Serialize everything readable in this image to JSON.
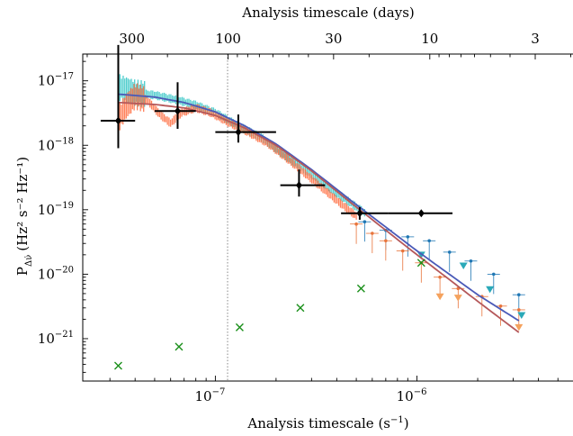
{
  "chart_data": {
    "type": "scatter",
    "scale": {
      "x": "log",
      "y": "log",
      "x_top": "log (timescale in days)"
    },
    "xlabel": "Analysis timescale (s",
    "xlabel_sup": "−1",
    "xlabel_close": ")",
    "ylabel": "P",
    "ylabel_sub": "Δν̇",
    "ylabel_units": "(Hz² s⁻² Hz⁻¹)",
    "top_xlabel": "Analysis timescale (days)",
    "xlim": [
      2.2e-08,
      6e-06
    ],
    "ylim": [
      2.2e-22,
      2.6e-17
    ],
    "x_ticks": [
      {
        "value": 1e-07,
        "label": "10",
        "exp": "−7"
      },
      {
        "value": 1e-06,
        "label": "10",
        "exp": "−6"
      }
    ],
    "y_ticks": [
      {
        "value": 1e-17,
        "label": "10",
        "exp": "−17"
      },
      {
        "value": 1e-18,
        "label": "10",
        "exp": "−18"
      },
      {
        "value": 1e-19,
        "label": "10",
        "exp": "−19"
      },
      {
        "value": 1e-20,
        "label": "10",
        "exp": "−20"
      },
      {
        "value": 1e-21,
        "label": "10",
        "exp": "−21"
      }
    ],
    "top_ticks": [
      {
        "days": 300,
        "label": "300"
      },
      {
        "days": 100,
        "label": "100"
      },
      {
        "days": 30,
        "label": "30"
      },
      {
        "days": 10,
        "label": "10"
      },
      {
        "days": 3,
        "label": "3"
      }
    ],
    "vline_x": 1.15e-07,
    "series": [
      {
        "kind": "spectrum_band",
        "color": "#2ec4c4",
        "x": [
          3.3e-08,
          4e-08,
          5e-08,
          6.5e-08,
          8e-08,
          1e-07,
          1.3e-07,
          1.7e-07,
          2.2e-07,
          3e-07,
          4e-07,
          5.5e-07
        ],
        "y": [
          8e-18,
          6.5e-18,
          6e-18,
          5e-18,
          4.2e-18,
          3.2e-18,
          2e-18,
          1.3e-18,
          7e-19,
          3.5e-19,
          1.8e-19,
          9e-20
        ]
      },
      {
        "kind": "spectrum_band",
        "color": "#ff6a3d",
        "x": [
          3.3e-08,
          3.6e-08,
          4e-08,
          4.6e-08,
          5.3e-08,
          6e-08,
          6.8e-08,
          8e-08,
          9.5e-08,
          1.15e-07,
          1.4e-07,
          1.8e-07,
          2.3e-07,
          3e-07,
          4e-07,
          5e-07
        ],
        "y": [
          2.5e-18,
          4e-18,
          5.8e-18,
          5e-18,
          3e-18,
          2.2e-18,
          3.2e-18,
          3.8e-18,
          3.2e-18,
          2.3e-18,
          1.7e-18,
          1.1e-18,
          6e-19,
          3e-19,
          1.4e-19,
          8e-20
        ]
      },
      {
        "kind": "points",
        "color": "#1f77b4",
        "x": [
          5.5e-07,
          7e-07,
          9e-07,
          1.15e-06,
          1.45e-06,
          1.85e-06,
          2.4e-06,
          3.2e-06
        ],
        "y": [
          6.5e-20,
          4.8e-20,
          3.8e-20,
          3.3e-20,
          2.2e-20,
          1.6e-20,
          1e-20,
          4.8e-21
        ]
      },
      {
        "kind": "points",
        "color": "#e8743b",
        "x": [
          5e-07,
          6e-07,
          7e-07,
          8.5e-07,
          1.05e-06,
          1.3e-06,
          1.6e-06,
          2.1e-06,
          2.6e-06,
          3.2e-06
        ],
        "y": [
          6e-20,
          4.3e-20,
          3.3e-20,
          2.3e-20,
          1.5e-20,
          9e-21,
          6e-21,
          4.5e-21,
          3.2e-21,
          2.8e-21
        ]
      },
      {
        "kind": "upper_limits",
        "color": "#2aa9b8",
        "x": [
          1.05e-06,
          1.7e-06,
          2.3e-06,
          3.3e-06
        ],
        "y": [
          2e-20,
          1.35e-20,
          5.8e-21,
          2.3e-21
        ]
      },
      {
        "kind": "upper_limits",
        "color": "#f5a25d",
        "x": [
          1.3e-06,
          1.6e-06,
          3.2e-06
        ],
        "y": [
          4.5e-21,
          4.3e-21,
          1.5e-21
        ]
      },
      {
        "kind": "model_line",
        "color": "#4a5ab8",
        "x": [
          3.3e-08,
          5e-08,
          7e-08,
          1e-07,
          1.4e-07,
          2e-07,
          3e-07,
          5e-07,
          1e-06,
          2e-06,
          3.2e-06
        ],
        "y": [
          6.2e-18,
          5.6e-18,
          4.6e-18,
          3.3e-18,
          2e-18,
          1.05e-18,
          4.2e-19,
          1.2e-19,
          2.3e-20,
          4.8e-21,
          1.9e-21
        ]
      },
      {
        "kind": "model_line",
        "color": "#b5585a",
        "x": [
          3.3e-08,
          5e-08,
          7e-08,
          1e-07,
          1.4e-07,
          2e-07,
          3e-07,
          5e-07,
          1e-06,
          2e-06,
          3.2e-06
        ],
        "y": [
          4.6e-18,
          4.3e-18,
          3.8e-18,
          2.9e-18,
          1.85e-18,
          1e-18,
          4e-19,
          1.1e-19,
          2e-20,
          3.8e-21,
          1.25e-21
        ]
      },
      {
        "kind": "binned_estimates",
        "color": "#000000",
        "points": [
          {
            "x": 3.3e-08,
            "y": 2.4e-18,
            "xlo": 2.7e-08,
            "xhi": 4e-08,
            "ylo": 9e-19,
            "yhi": 3.6e-17
          },
          {
            "x": 6.5e-08,
            "y": 3.4e-18,
            "xlo": 5e-08,
            "xhi": 8e-08,
            "ylo": 1.8e-18,
            "yhi": 9.5e-18
          },
          {
            "x": 1.3e-07,
            "y": 1.6e-18,
            "xlo": 1e-07,
            "xhi": 2e-07,
            "ylo": 1.1e-18,
            "yhi": 3e-18
          },
          {
            "x": 2.6e-07,
            "y": 2.4e-19,
            "xlo": 2.1e-07,
            "xhi": 3.5e-07,
            "ylo": 1.6e-19,
            "yhi": 4.2e-19
          },
          {
            "x": 5.2e-07,
            "y": 8.8e-20,
            "xlo": 4.2e-07,
            "xhi": 7.2e-07,
            "ylo": 7e-20,
            "yhi": 1.1e-19
          },
          {
            "x": 1.05e-06,
            "y": 8.8e-20,
            "xlo": 7.2e-07,
            "xhi": 1.5e-06,
            "ylo": 8.8e-20,
            "yhi": 8.8e-20
          }
        ]
      },
      {
        "kind": "noise_floor",
        "marker": "x",
        "color": "#1a8f1a",
        "x": [
          3.3e-08,
          6.6e-08,
          1.32e-07,
          2.64e-07,
          5.28e-07,
          1.05e-06
        ],
        "y": [
          3.8e-22,
          7.5e-22,
          1.5e-21,
          3e-21,
          6e-21,
          1.5e-20
        ]
      }
    ]
  }
}
